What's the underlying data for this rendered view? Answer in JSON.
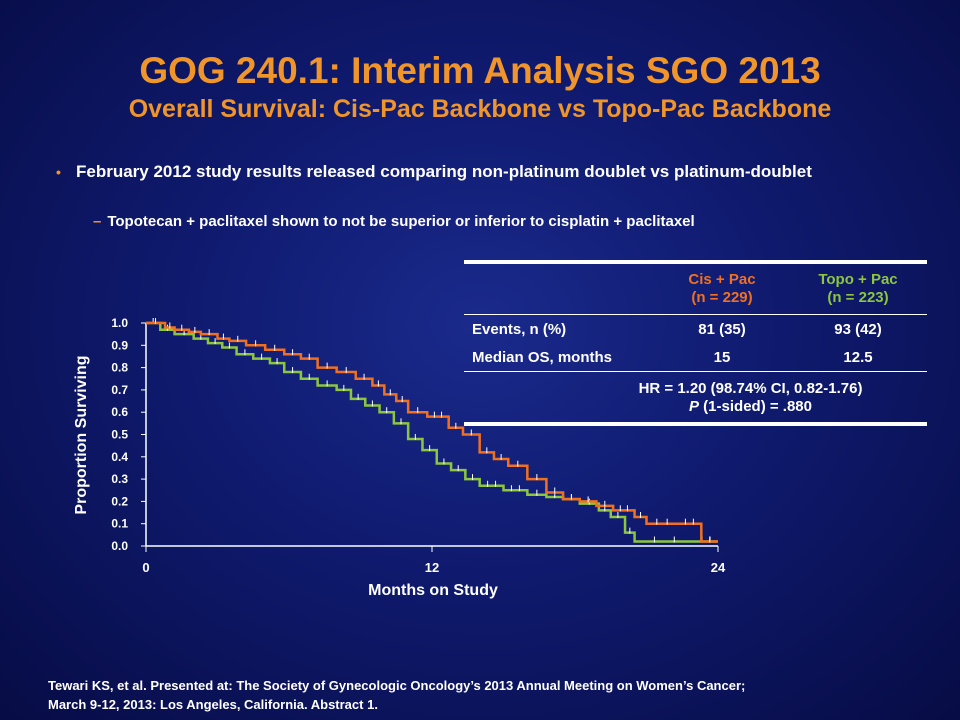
{
  "slide": {
    "title": "GOG 240.1: Interim Analysis SGO 2013",
    "subtitle": "Overall Survival: Cis-Pac Backbone vs Topo-Pac Backbone",
    "bullet": "February 2012 study results released comparing non-platinum doublet vs platinum-doublet",
    "sub_bullet": "Topotecan + paclitaxel shown to not be superior or inferior to cisplatin + paclitaxel",
    "footer_line1": "Tewari KS, et al. Presented at: The Society of Gynecologic Oncology’s 2013 Annual Meeting on Women’s Cancer;",
    "footer_line2": "March 9-12, 2013: Los Angeles, California. Abstract 1."
  },
  "table": {
    "col1_line1": "Cis + Pac",
    "col1_line2": "(n = 229)",
    "col2_line1": "Topo + Pac",
    "col2_line2": "(n = 223)",
    "rows": [
      {
        "label": "Events, n (%)",
        "v1": "81 (35)",
        "v2": "93 (42)"
      },
      {
        "label": "Median OS, months",
        "v1": "15",
        "v2": "12.5"
      }
    ],
    "hr_line": "HR = 1.20 (98.74% CI, 0.82-1.76)",
    "p_label": "P",
    "p_rest": " (1-sided) = .880"
  },
  "colors": {
    "cis": "#f07020",
    "topo": "#8cc63f",
    "title": "#f0952a"
  },
  "chart_data": {
    "type": "line",
    "xlabel": "Months on Study",
    "ylabel": "Proportion Surviving",
    "xlim": [
      0,
      24
    ],
    "ylim": [
      0,
      1.0
    ],
    "x_ticks": [
      "0",
      "12",
      "24"
    ],
    "y_ticks": [
      "0.0",
      "0.1",
      "0.2",
      "0.3",
      "0.4",
      "0.5",
      "0.6",
      "0.7",
      "0.8",
      "0.9",
      "1.0"
    ],
    "series": [
      {
        "name": "Cis + Pac",
        "color": "#f07020",
        "x": [
          0,
          0.8,
          1.2,
          1.8,
          2.3,
          3,
          3.5,
          4.2,
          5,
          5.8,
          6.5,
          7.2,
          8,
          8.8,
          9.5,
          10,
          10.5,
          11,
          11.8,
          12.7,
          13.3,
          14,
          14.6,
          15.2,
          16,
          16.8,
          17.5,
          18.2,
          18.9,
          19.6,
          20.5,
          21,
          22.3,
          23.3,
          24
        ],
        "y": [
          1.0,
          0.98,
          0.97,
          0.96,
          0.95,
          0.93,
          0.92,
          0.9,
          0.88,
          0.86,
          0.84,
          0.8,
          0.78,
          0.75,
          0.72,
          0.68,
          0.65,
          0.6,
          0.58,
          0.53,
          0.5,
          0.42,
          0.39,
          0.36,
          0.3,
          0.24,
          0.21,
          0.2,
          0.18,
          0.16,
          0.13,
          0.1,
          0.1,
          0.02,
          0.02
        ]
      },
      {
        "name": "Topo + Pac",
        "color": "#8cc63f",
        "x": [
          0,
          0.6,
          1.2,
          2,
          2.6,
          3.2,
          3.8,
          4.5,
          5.2,
          5.8,
          6.5,
          7.2,
          8,
          8.6,
          9.2,
          9.8,
          10.4,
          11,
          11.6,
          12.2,
          12.8,
          13.4,
          14,
          15,
          16,
          16.8,
          17.5,
          18.2,
          19,
          19.5,
          20.1,
          20.5,
          23,
          24
        ],
        "y": [
          1.0,
          0.97,
          0.95,
          0.93,
          0.91,
          0.89,
          0.86,
          0.84,
          0.82,
          0.78,
          0.75,
          0.72,
          0.7,
          0.66,
          0.63,
          0.6,
          0.55,
          0.48,
          0.43,
          0.37,
          0.34,
          0.3,
          0.27,
          0.25,
          0.23,
          0.22,
          0.21,
          0.19,
          0.16,
          0.13,
          0.06,
          0.02,
          0.02,
          0.02
        ]
      }
    ]
  }
}
